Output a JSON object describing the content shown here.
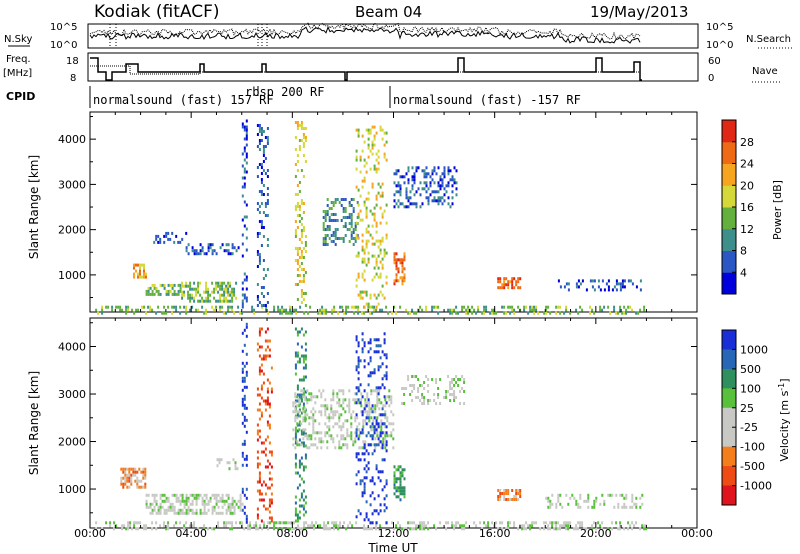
{
  "header": {
    "station": "Kodiak (fitACF)",
    "beam": "Beam 04",
    "date": "19/May/2013"
  },
  "top_panels": {
    "nsky_label": "N.Sky",
    "nsky_ticks": [
      "10^5",
      "10^0"
    ],
    "nsearch_label": "N.Search",
    "nsearch_ticks": [
      "10^5",
      "10^0"
    ],
    "freq_label_1": "Freq.",
    "freq_label_2": "[MHz]",
    "freq_ticks": [
      "18",
      "8"
    ],
    "nave_label": "Nave",
    "nave_ticks": [
      "60",
      "0"
    ],
    "cpid_label": "CPID",
    "cpid_segments": [
      "normalsound (fast) 157 RF",
      "rbsp 200 RF",
      "normalsound (fast) -157 RF"
    ]
  },
  "chart_data": [
    {
      "type": "heatmap",
      "name": "power",
      "ylabel": "Slant Range [km]",
      "xlabel": "",
      "x_ticks": [
        "00:00",
        "04:00",
        "08:00",
        "12:00",
        "16:00",
        "20:00",
        "00:00"
      ],
      "x_range_hours": [
        0,
        24
      ],
      "y_ticks": [
        1000,
        2000,
        3000,
        4000
      ],
      "ylim": [
        180,
        4600
      ],
      "colorbar": {
        "label": "Power [dB]",
        "ticks": [
          4,
          8,
          12,
          16,
          20,
          24,
          28
        ],
        "range": [
          0,
          32
        ],
        "colors": [
          "#0000dd",
          "#2a57c4",
          "#3e8f8c",
          "#64b03f",
          "#d4d838",
          "#f7a420",
          "#ef6a14",
          "#e02816"
        ]
      },
      "scatter_regions": [
        {
          "t": [
            0.2,
            22
          ],
          "r": [
            180,
            320
          ],
          "level": 3,
          "density": 0.35
        },
        {
          "t": [
            1.7,
            2.2
          ],
          "r": [
            950,
            1250
          ],
          "level": 5,
          "density": 0.6
        },
        {
          "t": [
            2.2,
            3.6
          ],
          "r": [
            600,
            800
          ],
          "level": 3,
          "density": 0.55
        },
        {
          "t": [
            3.6,
            5.8
          ],
          "r": [
            450,
            850
          ],
          "level": 3,
          "density": 0.6
        },
        {
          "t": [
            3.7,
            5.9
          ],
          "r": [
            1450,
            1700
          ],
          "level": 1,
          "density": 0.35
        },
        {
          "t": [
            2.5,
            3.8
          ],
          "r": [
            1750,
            1950
          ],
          "level": 1,
          "density": 0.3
        },
        {
          "t": [
            6.0,
            6.2
          ],
          "r": [
            300,
            4500
          ],
          "level": 1,
          "density": 0.3
        },
        {
          "t": [
            6.6,
            7.0
          ],
          "r": [
            300,
            4400
          ],
          "level": 1,
          "density": 0.25
        },
        {
          "t": [
            8.1,
            8.5
          ],
          "r": [
            300,
            4400
          ],
          "level": 4,
          "density": 0.3
        },
        {
          "t": [
            9.2,
            10.6
          ],
          "r": [
            1700,
            2700
          ],
          "level": 2,
          "density": 0.35
        },
        {
          "t": [
            10.5,
            11.7
          ],
          "r": [
            300,
            4300
          ],
          "level": 4,
          "density": 0.2
        },
        {
          "t": [
            12.0,
            14.5
          ],
          "r": [
            2500,
            3400
          ],
          "level": 1,
          "density": 0.35
        },
        {
          "t": [
            12.0,
            12.4
          ],
          "r": [
            800,
            1500
          ],
          "level": 6,
          "density": 0.6
        },
        {
          "t": [
            16.1,
            17.0
          ],
          "r": [
            750,
            950
          ],
          "level": 6,
          "density": 0.6
        },
        {
          "t": [
            18.5,
            21.8
          ],
          "r": [
            700,
            900
          ],
          "level": 1,
          "density": 0.25
        }
      ]
    },
    {
      "type": "heatmap",
      "name": "velocity",
      "ylabel": "Slant Range [km]",
      "xlabel": "Time UT",
      "x_ticks": [
        "00:00",
        "04:00",
        "08:00",
        "12:00",
        "16:00",
        "20:00",
        "00:00"
      ],
      "x_range_hours": [
        0,
        24
      ],
      "y_ticks": [
        1000,
        2000,
        3000,
        4000
      ],
      "ylim": [
        180,
        4600
      ],
      "colorbar": {
        "label": "Velocity [m s^-1]",
        "ticks": [
          "1000",
          "500",
          "100",
          "25",
          "-25",
          "-100",
          "-500",
          "-1000"
        ],
        "colors": [
          "#1a2ed8",
          "#2866b8",
          "#2f8f5e",
          "#58c03a",
          "#c8c8c4",
          "#c8c8c4",
          "#f47d1c",
          "#ef4b14",
          "#e0141c"
        ]
      },
      "scatter_regions": [
        {
          "t": [
            0.2,
            22
          ],
          "r": [
            180,
            320
          ],
          "level": 4,
          "density": 0.35
        },
        {
          "t": [
            1.2,
            2.2
          ],
          "r": [
            1050,
            1450
          ],
          "level": 6,
          "density": 0.6
        },
        {
          "t": [
            2.2,
            6.0
          ],
          "r": [
            500,
            900
          ],
          "level": 4,
          "density": 0.55
        },
        {
          "t": [
            5.0,
            5.8
          ],
          "r": [
            1450,
            1650
          ],
          "level": 4,
          "density": 0.35
        },
        {
          "t": [
            6.0,
            6.2
          ],
          "r": [
            300,
            4500
          ],
          "level": 0,
          "density": 0.3
        },
        {
          "t": [
            6.6,
            7.2
          ],
          "r": [
            300,
            4400
          ],
          "level": 7,
          "density": 0.25
        },
        {
          "t": [
            8.1,
            8.5
          ],
          "r": [
            300,
            4400
          ],
          "level": 2,
          "density": 0.3
        },
        {
          "t": [
            8.0,
            12.0
          ],
          "r": [
            1900,
            3100
          ],
          "level": 4,
          "density": 0.35
        },
        {
          "t": [
            10.5,
            11.7
          ],
          "r": [
            300,
            4300
          ],
          "level": 0,
          "density": 0.2
        },
        {
          "t": [
            12.3,
            14.8
          ],
          "r": [
            2800,
            3400
          ],
          "level": 4,
          "density": 0.3
        },
        {
          "t": [
            12.0,
            12.4
          ],
          "r": [
            800,
            1500
          ],
          "level": 2,
          "density": 0.6
        },
        {
          "t": [
            16.1,
            17.0
          ],
          "r": [
            800,
            1000
          ],
          "level": 6,
          "density": 0.6
        },
        {
          "t": [
            18.0,
            21.8
          ],
          "r": [
            600,
            900
          ],
          "level": 4,
          "density": 0.3
        }
      ]
    }
  ]
}
